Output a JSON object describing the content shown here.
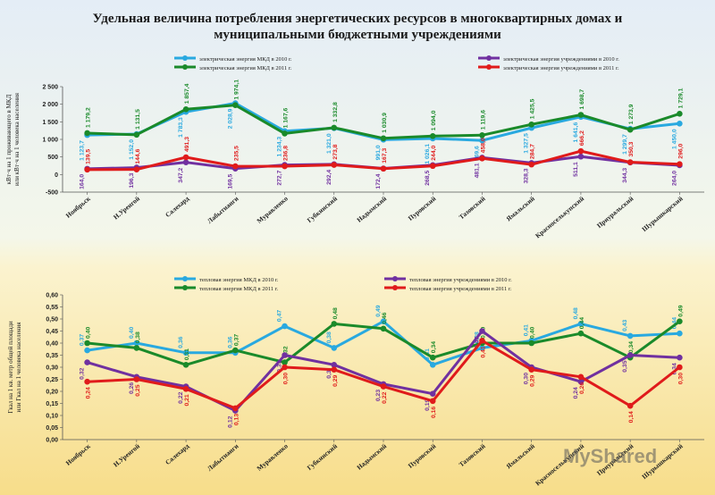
{
  "title": "Удельная величина потребления энергетических ресурсов в многоквартирных домах и муниципальными бюджетными учреждениями",
  "watermark": "MyShared",
  "chart_data": [
    {
      "type": "line",
      "ylabel": "кВт·ч на 1 проживающего в МКД или кВт·ч на 1 человека населения",
      "ylim": [
        -500,
        2500
      ],
      "yticks": [
        "2 500",
        "2 000",
        "1 500",
        "1 000",
        "500",
        "0",
        "-500"
      ],
      "ytick_values": [
        2500,
        2000,
        1500,
        1000,
        500,
        0,
        -500
      ],
      "categories": [
        "Ноябрьск",
        "Н.Уренгой",
        "Салехард",
        "Лабытнанги",
        "Муравленко",
        "Губкинский",
        "Надымский",
        "Пуровский",
        "Тазовский",
        "Ямальский",
        "Красноселькупский",
        "Приуральский",
        "Шурышкарский"
      ],
      "series": [
        {
          "name": "электрическая энергия МКД в 2010 г.",
          "color": "#29a9e0",
          "values": [
            1123.7,
            1152.0,
            1783.3,
            2028.9,
            1234.3,
            1321.0,
            991.0,
            1026.1,
            969.6,
            1327.5,
            1641.6,
            1299.7,
            1450.0
          ],
          "labels": [
            "1 123,7",
            "1 152,0",
            "1 783,3",
            "2 028,9",
            "1 234,3",
            "1 321,0",
            "991,0",
            "1 026,1",
            "969,6",
            "1 327,5",
            "1 641,6",
            "1 299,7",
            "1 450,0"
          ]
        },
        {
          "name": "электрическая энергия МКД в 2011 г.",
          "color": "#1a8a2a",
          "values": [
            1179.2,
            1131.5,
            1857.4,
            1974.1,
            1167.6,
            1332.8,
            1030.9,
            1094.0,
            1119.6,
            1425.5,
            1698.7,
            1273.9,
            1729.1
          ],
          "labels": [
            "1 179,2",
            "1 131,5",
            "1 857,4",
            "1 974,1",
            "1 167,6",
            "1 332,8",
            "1 030,9",
            "1 094,0",
            "1 119,6",
            "1 425,5",
            "1 698,7",
            "1 273,9",
            "1 729,1"
          ]
        },
        {
          "name": "электрическая энергия учреждениями в 2010 г.",
          "color": "#7030a0",
          "values": [
            164.0,
            196.3,
            347.2,
            169.5,
            272.7,
            292.4,
            172.4,
            268.5,
            481.1,
            328.3,
            511.1,
            344.3,
            264.0
          ],
          "labels": [
            "164,0",
            "196,3",
            "347,2",
            "169,5",
            "272,7",
            "292,4",
            "172,4",
            "268,5",
            "481,1",
            "328,3",
            "511,1",
            "344,3",
            "264,0"
          ]
        },
        {
          "name": "электрическая энергия учреждениями в 2011 г.",
          "color": "#e01b1b",
          "values": [
            139.5,
            144.6,
            491.3,
            235.5,
            236.8,
            273.8,
            167.3,
            244.0,
            458.0,
            284.7,
            666.2,
            350.3,
            296.0
          ],
          "labels": [
            "139,5",
            "144,6",
            "491,3",
            "235,5",
            "236,8",
            "273,8",
            "167,3",
            "244,0",
            "458,0",
            "284,7",
            "666,2",
            "350,3",
            "296,0"
          ]
        }
      ]
    },
    {
      "type": "line",
      "ylabel": "Гкал на 1 кв. метр общей площади или Гкал на 1 человека населения",
      "ylim": [
        0,
        0.6
      ],
      "yticks": [
        "0,60",
        "0,55",
        "0,50",
        "0,45",
        "0,40",
        "0,35",
        "0,30",
        "0,25",
        "0,20",
        "0,15",
        "0,10",
        "0,05",
        "0,00"
      ],
      "ytick_values": [
        0.6,
        0.55,
        0.5,
        0.45,
        0.4,
        0.35,
        0.3,
        0.25,
        0.2,
        0.15,
        0.1,
        0.05,
        0
      ],
      "categories": [
        "Ноябрьск",
        "Н.Уренгой",
        "Салехард",
        "Лабытнанги",
        "Муравленко",
        "Губкинский",
        "Надымский",
        "Пуровский",
        "Тазовский",
        "Ямальский",
        "Красноселькупский",
        "Приуральский",
        "Шурышкарский"
      ],
      "series": [
        {
          "name": "тепловая энергия МКД в 2010 г.",
          "color": "#29a9e0",
          "values": [
            0.37,
            0.4,
            0.36,
            0.36,
            0.47,
            0.38,
            0.49,
            0.31,
            0.38,
            0.41,
            0.48,
            0.43,
            0.44
          ],
          "labels": [
            "0,37",
            "0,40",
            "0,36",
            "0,36",
            "0,47",
            "0,38",
            "0,49",
            "0,31",
            "0,38",
            "0,41",
            "0,48",
            "0,43",
            "0,44"
          ]
        },
        {
          "name": "тепловая энергия МКД в 2011 г.",
          "color": "#1a8a2a",
          "values": [
            0.4,
            0.38,
            0.31,
            0.37,
            0.32,
            0.48,
            0.46,
            0.34,
            0.4,
            0.4,
            0.44,
            0.34,
            0.49
          ],
          "labels": [
            "0,40",
            "0,38",
            "0,31",
            "0,37",
            "0,32",
            "0,48",
            "0,46",
            "0,34",
            "0,40",
            "0,40",
            "0,44",
            "0,34",
            "0,49"
          ]
        },
        {
          "name": "тепловая энергия учреждениями в 2010 г.",
          "color": "#7030a0",
          "values": [
            0.32,
            0.26,
            0.22,
            0.12,
            0.35,
            0.31,
            0.23,
            0.19,
            0.45,
            0.3,
            0.24,
            0.35,
            0.34
          ],
          "labels": [
            "0,32",
            "0,26",
            "0,22",
            "0,12",
            "0,35",
            "0,3",
            "0,23",
            "0,19",
            "0,45",
            "0,30",
            "0,24",
            "0,35",
            "0,34"
          ]
        },
        {
          "name": "тепловая энергия учреждениями в 2011 г.",
          "color": "#e01b1b",
          "values": [
            0.24,
            0.25,
            0.21,
            0.13,
            0.3,
            0.29,
            0.22,
            0.16,
            0.41,
            0.29,
            0.26,
            0.14,
            0.3
          ],
          "labels": [
            "0,24",
            "0,25",
            "0,21",
            "0,13",
            "0,30",
            "0,29",
            "0,22",
            "0,16",
            "0,41",
            "0,29",
            "0,26",
            "0,14",
            "0,30"
          ]
        }
      ]
    }
  ]
}
